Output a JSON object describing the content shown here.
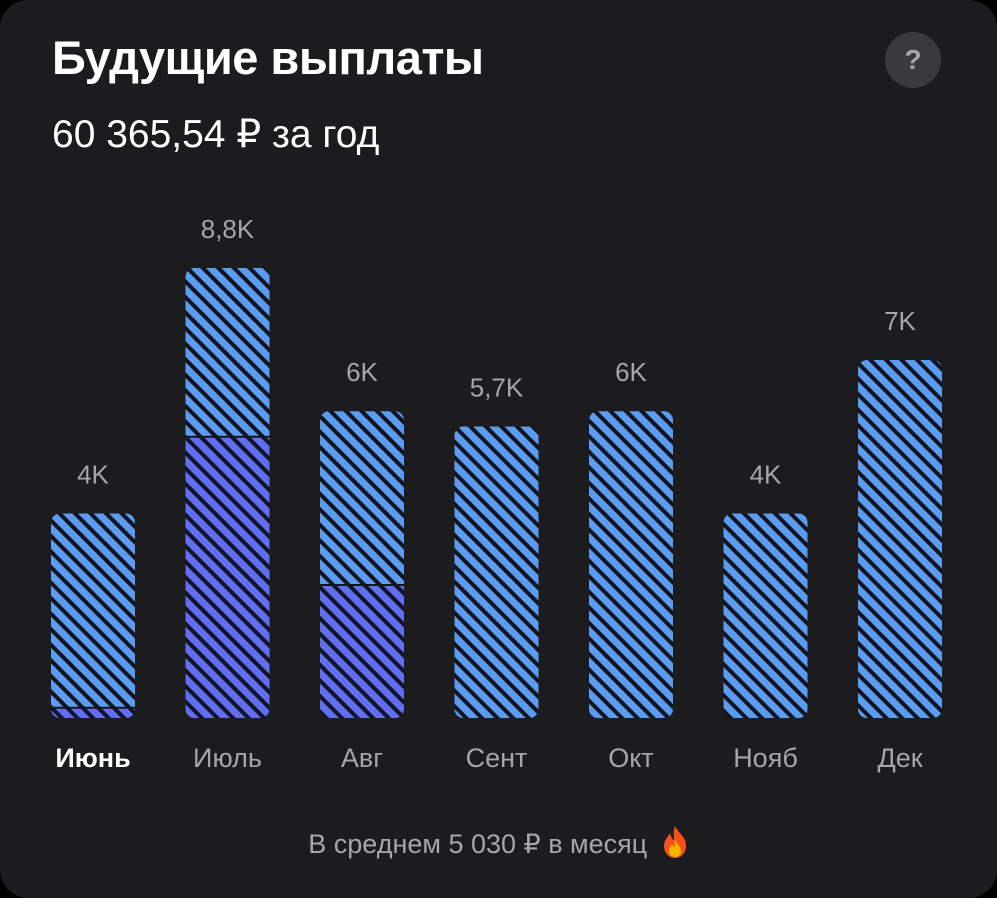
{
  "header": {
    "title": "Будущие выплаты",
    "total": "60 365,54 ₽ за год",
    "help_icon": "?"
  },
  "footer": {
    "average_text": "В среднем 5 030 ₽ в месяц",
    "icon": "flame-icon"
  },
  "colors": {
    "background": "#1c1c1e",
    "expected": "#5b9bf0",
    "confirmed": "#5f6ff0",
    "label": "#a5a5aa",
    "active_label": "#ffffff"
  },
  "chart_data": {
    "type": "bar",
    "stacked": true,
    "categories": [
      "Июнь",
      "Июль",
      "Авг",
      "Сент",
      "Окт",
      "Нояб",
      "Дек"
    ],
    "active_category": "Июнь",
    "value_labels": [
      "4K",
      "8,8K",
      "6K",
      "5,7K",
      "6K",
      "4K",
      "7K"
    ],
    "values": [
      4000,
      8800,
      6000,
      5700,
      6000,
      4000,
      7000
    ],
    "series": [
      {
        "values": [
          200,
          5500,
          2600,
          0,
          0,
          0,
          0
        ]
      },
      {
        "values": [
          3800,
          3300,
          3400,
          5700,
          6000,
          4000,
          7000
        ]
      }
    ],
    "ylim": [
      0,
      8800
    ],
    "grid": false
  }
}
